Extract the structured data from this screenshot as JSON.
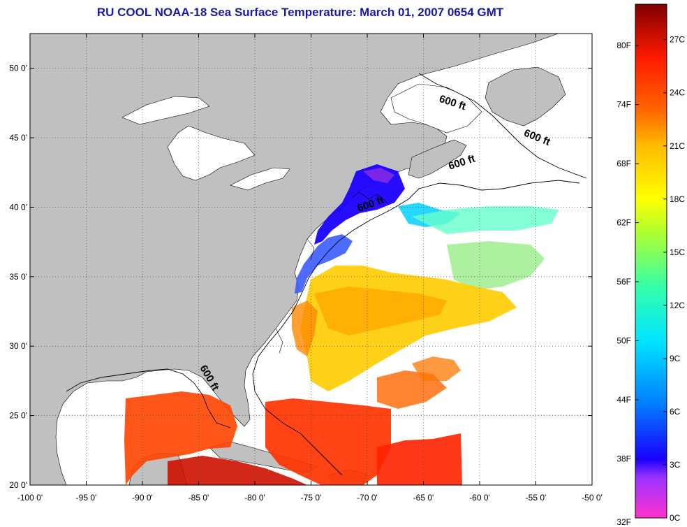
{
  "title": "RU COOL  NOAA-18  Sea Surface Temperature:  March 01, 2007 0654 GMT",
  "map": {
    "lon_range": [
      -100,
      -50
    ],
    "lat_range": [
      20,
      52.5
    ],
    "lon_ticks": [
      {
        "value": -100,
        "label": "-100 0'"
      },
      {
        "value": -95,
        "label": "-95 0'"
      },
      {
        "value": -90,
        "label": "-90 0'"
      },
      {
        "value": -85,
        "label": "-85 0'"
      },
      {
        "value": -80,
        "label": "-80 0'"
      },
      {
        "value": -75,
        "label": "-75 0'"
      },
      {
        "value": -70,
        "label": "-70 0'"
      },
      {
        "value": -65,
        "label": "-65 0'"
      },
      {
        "value": -60,
        "label": "-60 0'"
      },
      {
        "value": -55,
        "label": "-55 0'"
      },
      {
        "value": -50,
        "label": "-50 0'"
      }
    ],
    "lat_ticks": [
      {
        "value": 20,
        "label": "20 0'"
      },
      {
        "value": 25,
        "label": "25 0'"
      },
      {
        "value": 30,
        "label": "30 0'"
      },
      {
        "value": 35,
        "label": "35 0'"
      },
      {
        "value": 40,
        "label": "40 0'"
      },
      {
        "value": 45,
        "label": "45 0'"
      },
      {
        "value": 50,
        "label": "50 0'"
      }
    ],
    "grid": "dotted",
    "colors": {
      "land": "#c0c0c0",
      "cloud": "#ffffff",
      "coast": "#000000"
    },
    "contour_labels": [
      {
        "text": "600 ft",
        "lon": -62.5,
        "lat": 47.3,
        "angle": 18
      },
      {
        "text": "600 ft",
        "lon": -55.0,
        "lat": 44.8,
        "angle": 22
      },
      {
        "text": "600 ft",
        "lon": -61.5,
        "lat": 43.0,
        "angle": -18
      },
      {
        "text": "600 ft",
        "lon": -69.6,
        "lat": 40.0,
        "angle": -20
      },
      {
        "text": "600 ft",
        "lon": -84.3,
        "lat": 27.6,
        "angle": 60
      }
    ]
  },
  "colorbar": {
    "vmin": 0,
    "vmax": 29,
    "f_labels": [
      "80F",
      "74F",
      "68F",
      "62F",
      "56F",
      "50F",
      "44F",
      "38F",
      "32F"
    ],
    "c_labels": [
      "27C",
      "24C",
      "21C",
      "18C",
      "15C",
      "12C",
      "9C",
      "6C",
      "3C",
      "0C"
    ],
    "stops": [
      {
        "t": 0,
        "color": "#ff33cc"
      },
      {
        "t": 2.3,
        "color": "#9933ff"
      },
      {
        "t": 3.3,
        "color": "#1a00ff"
      },
      {
        "t": 6.5,
        "color": "#0080ff"
      },
      {
        "t": 10,
        "color": "#00e5ff"
      },
      {
        "t": 13,
        "color": "#33ffaa"
      },
      {
        "t": 16,
        "color": "#aaff33"
      },
      {
        "t": 18,
        "color": "#ffff00"
      },
      {
        "t": 21,
        "color": "#ffbb00"
      },
      {
        "t": 23,
        "color": "#ff6600"
      },
      {
        "t": 26,
        "color": "#ff1a00"
      },
      {
        "t": 29,
        "color": "#800000"
      }
    ]
  }
}
